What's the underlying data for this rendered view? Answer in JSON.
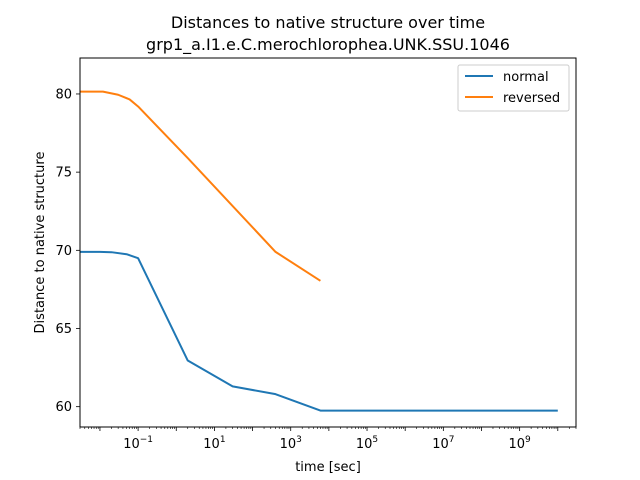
{
  "chart_data": {
    "type": "line",
    "title": "Distances to native structure over time",
    "subtitle": "grp1_a.I1.e.C.merochlorophea.UNK.SSU.1046",
    "xlabel": "time [sec]",
    "ylabel": "Distance to native structure",
    "xscale": "log",
    "xlim": [
      0.003,
      30000000000
    ],
    "ylim": [
      58.7,
      82.3
    ],
    "xticks": [
      {
        "value": 0.1,
        "base": "10",
        "exp": "−1"
      },
      {
        "value": 10,
        "base": "10",
        "exp": "1"
      },
      {
        "value": 1000,
        "base": "10",
        "exp": "3"
      },
      {
        "value": 100000,
        "base": "10",
        "exp": "5"
      },
      {
        "value": 10000000,
        "base": "10",
        "exp": "7"
      },
      {
        "value": 1000000000,
        "base": "10",
        "exp": "9"
      }
    ],
    "yticks": [
      {
        "value": 60,
        "label": "60"
      },
      {
        "value": 65,
        "label": "65"
      },
      {
        "value": 70,
        "label": "70"
      },
      {
        "value": 75,
        "label": "75"
      },
      {
        "value": 80,
        "label": "80"
      }
    ],
    "grid": false,
    "legend_position": "top-right",
    "series": [
      {
        "name": "normal",
        "color": "#1f77b4",
        "points": [
          [
            0.003,
            69.9
          ],
          [
            0.01,
            69.9
          ],
          [
            0.02,
            69.88
          ],
          [
            0.05,
            69.75
          ],
          [
            0.1,
            69.5
          ],
          [
            2,
            62.95
          ],
          [
            30,
            61.3
          ],
          [
            400,
            60.8
          ],
          [
            6000,
            59.75
          ],
          [
            100000,
            59.75
          ],
          [
            10000000,
            59.75
          ],
          [
            10000000000,
            59.75
          ]
        ]
      },
      {
        "name": "reversed",
        "color": "#ff7f0e",
        "points": [
          [
            0.003,
            80.15
          ],
          [
            0.012,
            80.15
          ],
          [
            0.03,
            79.95
          ],
          [
            0.06,
            79.65
          ],
          [
            0.1,
            79.2
          ],
          [
            2,
            75.9
          ],
          [
            400,
            69.9
          ],
          [
            6000,
            68.05
          ]
        ]
      }
    ]
  }
}
